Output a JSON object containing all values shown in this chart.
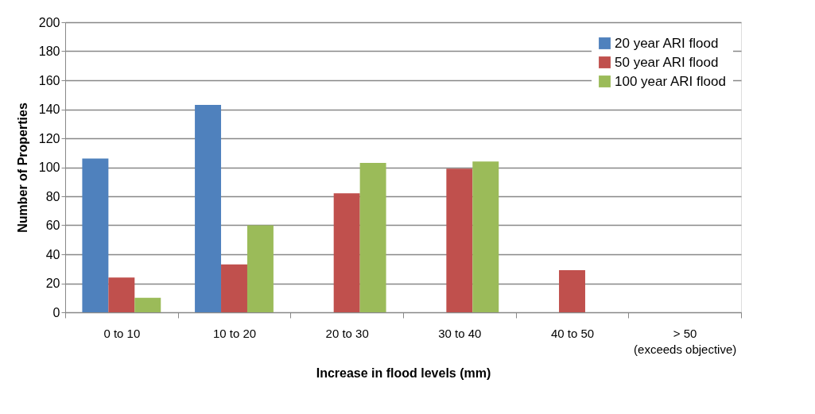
{
  "chart_data": {
    "type": "bar",
    "xlabel": "Increase in flood levels (mm)",
    "ylabel": "Number of Properties",
    "categories": [
      "0 to 10",
      "10 to 20",
      "20 to 30",
      "30 to 40",
      "40 to 50",
      "> 50\n(exceeds objective)"
    ],
    "series": [
      {
        "name": "20 year ARI flood",
        "color": "#4f81bd",
        "values": [
          106,
          143,
          null,
          null,
          null,
          null
        ]
      },
      {
        "name": "50 year ARI flood",
        "color": "#c0504d",
        "values": [
          24,
          33,
          82,
          99,
          29,
          null
        ]
      },
      {
        "name": "100 year ARI flood",
        "color": "#9bbb59",
        "values": [
          10,
          60,
          103,
          104,
          null,
          null
        ]
      }
    ],
    "ylim": [
      0,
      200
    ],
    "yticks": [
      0,
      20,
      40,
      60,
      80,
      100,
      120,
      140,
      160,
      180,
      200
    ],
    "grid": "y",
    "legend": "top right"
  }
}
